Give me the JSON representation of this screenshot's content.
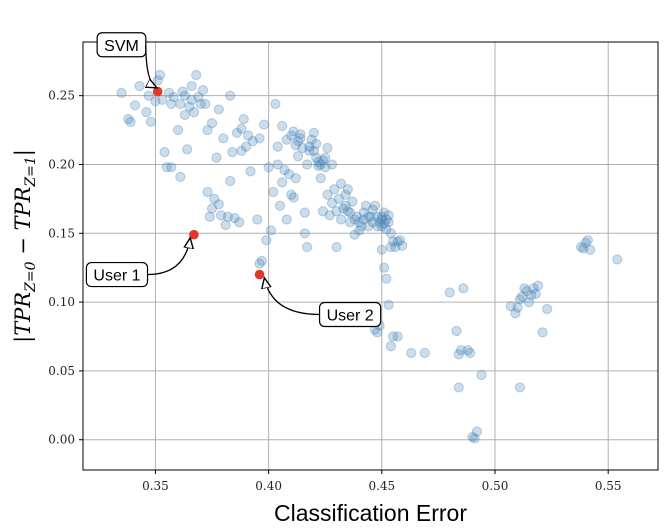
{
  "chart_data": {
    "type": "scatter",
    "title": "",
    "xlabel": "Classification Error",
    "ylabel": "|TPR_{Z=0} − TPR_{Z=1}|",
    "ylabel_parts": {
      "open": "|TPR",
      "sub1": "Z=0",
      "minus": " − TPR",
      "sub2": "Z=1",
      "close": "|"
    },
    "xlim": [
      0.318,
      0.572
    ],
    "ylim": [
      -0.022,
      0.289
    ],
    "xticks": [
      0.35,
      0.4,
      0.45,
      0.5,
      0.55
    ],
    "xtick_labels": [
      "0.35",
      "0.40",
      "0.45",
      "0.50",
      "0.55"
    ],
    "yticks": [
      0.0,
      0.05,
      0.1,
      0.15,
      0.2,
      0.25
    ],
    "ytick_labels": [
      "0.00",
      "0.05",
      "0.10",
      "0.15",
      "0.20",
      "0.25"
    ],
    "grid": true,
    "colors": {
      "points": "#4682b4",
      "highlight": "#e0392b",
      "grid": "#b0b0b0"
    },
    "points": [
      [
        0.335,
        0.252
      ],
      [
        0.338,
        0.233
      ],
      [
        0.339,
        0.231
      ],
      [
        0.341,
        0.243
      ],
      [
        0.343,
        0.257
      ],
      [
        0.346,
        0.238
      ],
      [
        0.347,
        0.25
      ],
      [
        0.348,
        0.231
      ],
      [
        0.35,
        0.246
      ],
      [
        0.351,
        0.261
      ],
      [
        0.352,
        0.265
      ],
      [
        0.353,
        0.247
      ],
      [
        0.354,
        0.209
      ],
      [
        0.355,
        0.198
      ],
      [
        0.356,
        0.252
      ],
      [
        0.357,
        0.198
      ],
      [
        0.357,
        0.244
      ],
      [
        0.358,
        0.249
      ],
      [
        0.36,
        0.225
      ],
      [
        0.361,
        0.191
      ],
      [
        0.361,
        0.244
      ],
      [
        0.362,
        0.253
      ],
      [
        0.363,
        0.236
      ],
      [
        0.363,
        0.25
      ],
      [
        0.364,
        0.211
      ],
      [
        0.365,
        0.242
      ],
      [
        0.366,
        0.247
      ],
      [
        0.366,
        0.257
      ],
      [
        0.367,
        0.238
      ],
      [
        0.368,
        0.265
      ],
      [
        0.369,
        0.249
      ],
      [
        0.37,
        0.244
      ],
      [
        0.371,
        0.254
      ],
      [
        0.372,
        0.244
      ],
      [
        0.373,
        0.18
      ],
      [
        0.373,
        0.225
      ],
      [
        0.374,
        0.162
      ],
      [
        0.375,
        0.168
      ],
      [
        0.375,
        0.23
      ],
      [
        0.376,
        0.175
      ],
      [
        0.377,
        0.205
      ],
      [
        0.378,
        0.171
      ],
      [
        0.378,
        0.24
      ],
      [
        0.379,
        0.163
      ],
      [
        0.38,
        0.219
      ],
      [
        0.381,
        0.156
      ],
      [
        0.382,
        0.162
      ],
      [
        0.383,
        0.188
      ],
      [
        0.383,
        0.25
      ],
      [
        0.384,
        0.209
      ],
      [
        0.385,
        0.161
      ],
      [
        0.386,
        0.223
      ],
      [
        0.387,
        0.158
      ],
      [
        0.388,
        0.226
      ],
      [
        0.388,
        0.21
      ],
      [
        0.389,
        0.233
      ],
      [
        0.39,
        0.213
      ],
      [
        0.391,
        0.221
      ],
      [
        0.392,
        0.195
      ],
      [
        0.393,
        0.217
      ],
      [
        0.395,
        0.16
      ],
      [
        0.396,
        0.128
      ],
      [
        0.396,
        0.219
      ],
      [
        0.397,
        0.13
      ],
      [
        0.398,
        0.229
      ],
      [
        0.399,
        0.145
      ],
      [
        0.4,
        0.198
      ],
      [
        0.401,
        0.152
      ],
      [
        0.402,
        0.18
      ],
      [
        0.403,
        0.244
      ],
      [
        0.404,
        0.2
      ],
      [
        0.404,
        0.213
      ],
      [
        0.405,
        0.17
      ],
      [
        0.406,
        0.228
      ],
      [
        0.406,
        0.187
      ],
      [
        0.407,
        0.196
      ],
      [
        0.408,
        0.16
      ],
      [
        0.408,
        0.218
      ],
      [
        0.409,
        0.193
      ],
      [
        0.41,
        0.178
      ],
      [
        0.41,
        0.221
      ],
      [
        0.411,
        0.176
      ],
      [
        0.411,
        0.224
      ],
      [
        0.412,
        0.214
      ],
      [
        0.412,
        0.19
      ],
      [
        0.413,
        0.206
      ],
      [
        0.413,
        0.217
      ],
      [
        0.414,
        0.222
      ],
      [
        0.414,
        0.219
      ],
      [
        0.415,
        0.212
      ],
      [
        0.416,
        0.15
      ],
      [
        0.416,
        0.165
      ],
      [
        0.417,
        0.14
      ],
      [
        0.417,
        0.2
      ],
      [
        0.418,
        0.21
      ],
      [
        0.418,
        0.213
      ],
      [
        0.419,
        0.218
      ],
      [
        0.42,
        0.223
      ],
      [
        0.42,
        0.21
      ],
      [
        0.421,
        0.205
      ],
      [
        0.421,
        0.215
      ],
      [
        0.422,
        0.199
      ],
      [
        0.422,
        0.202
      ],
      [
        0.423,
        0.19
      ],
      [
        0.423,
        0.2
      ],
      [
        0.424,
        0.203
      ],
      [
        0.424,
        0.166
      ],
      [
        0.425,
        0.198
      ],
      [
        0.425,
        0.205
      ],
      [
        0.426,
        0.212
      ],
      [
        0.426,
        0.178
      ],
      [
        0.427,
        0.163
      ],
      [
        0.428,
        0.172
      ],
      [
        0.428,
        0.2
      ],
      [
        0.429,
        0.182
      ],
      [
        0.43,
        0.166
      ],
      [
        0.43,
        0.14
      ],
      [
        0.431,
        0.175
      ],
      [
        0.432,
        0.186
      ],
      [
        0.432,
        0.16
      ],
      [
        0.433,
        0.168
      ],
      [
        0.434,
        0.178
      ],
      [
        0.434,
        0.17
      ],
      [
        0.435,
        0.166
      ],
      [
        0.435,
        0.182
      ],
      [
        0.436,
        0.165
      ],
      [
        0.436,
        0.158
      ],
      [
        0.437,
        0.173
      ],
      [
        0.438,
        0.16
      ],
      [
        0.438,
        0.149
      ],
      [
        0.439,
        0.162
      ],
      [
        0.44,
        0.158
      ],
      [
        0.44,
        0.152
      ],
      [
        0.441,
        0.155
      ],
      [
        0.442,
        0.16
      ],
      [
        0.442,
        0.165
      ],
      [
        0.443,
        0.17
      ],
      [
        0.444,
        0.162
      ],
      [
        0.444,
        0.155
      ],
      [
        0.445,
        0.162
      ],
      [
        0.446,
        0.158
      ],
      [
        0.446,
        0.167
      ],
      [
        0.447,
        0.17
      ],
      [
        0.448,
        0.162
      ],
      [
        0.448,
        0.155
      ],
      [
        0.449,
        0.158
      ],
      [
        0.45,
        0.16
      ],
      [
        0.45,
        0.162
      ],
      [
        0.45,
        0.155
      ],
      [
        0.451,
        0.157
      ],
      [
        0.451,
        0.165
      ],
      [
        0.452,
        0.16
      ],
      [
        0.452,
        0.153
      ],
      [
        0.453,
        0.158
      ],
      [
        0.453,
        0.163
      ],
      [
        0.454,
        0.15
      ],
      [
        0.454,
        0.14
      ],
      [
        0.455,
        0.144
      ],
      [
        0.456,
        0.14
      ],
      [
        0.457,
        0.144
      ],
      [
        0.458,
        0.145
      ],
      [
        0.459,
        0.141
      ],
      [
        0.447,
        0.08
      ],
      [
        0.448,
        0.078
      ],
      [
        0.449,
        0.083
      ],
      [
        0.45,
        0.138
      ],
      [
        0.451,
        0.125
      ],
      [
        0.452,
        0.117
      ],
      [
        0.453,
        0.098
      ],
      [
        0.454,
        0.068
      ],
      [
        0.455,
        0.075
      ],
      [
        0.457,
        0.075
      ],
      [
        0.463,
        0.063
      ],
      [
        0.469,
        0.063
      ],
      [
        0.48,
        0.107
      ],
      [
        0.483,
        0.079
      ],
      [
        0.484,
        0.062
      ],
      [
        0.485,
        0.065
      ],
      [
        0.486,
        0.11
      ],
      [
        0.488,
        0.065
      ],
      [
        0.489,
        0.063
      ],
      [
        0.484,
        0.038
      ],
      [
        0.49,
        0.002
      ],
      [
        0.491,
        0.001
      ],
      [
        0.492,
        0.006
      ],
      [
        0.494,
        0.047
      ],
      [
        0.507,
        0.097
      ],
      [
        0.509,
        0.092
      ],
      [
        0.51,
        0.096
      ],
      [
        0.511,
        0.102
      ],
      [
        0.512,
        0.104
      ],
      [
        0.513,
        0.11
      ],
      [
        0.514,
        0.108
      ],
      [
        0.515,
        0.1
      ],
      [
        0.516,
        0.105
      ],
      [
        0.517,
        0.11
      ],
      [
        0.518,
        0.106
      ],
      [
        0.519,
        0.112
      ],
      [
        0.511,
        0.038
      ],
      [
        0.521,
        0.078
      ],
      [
        0.523,
        0.095
      ],
      [
        0.538,
        0.14
      ],
      [
        0.539,
        0.139
      ],
      [
        0.54,
        0.143
      ],
      [
        0.541,
        0.145
      ],
      [
        0.542,
        0.138
      ],
      [
        0.554,
        0.131
      ]
    ],
    "highlighted": [
      {
        "name": "SVM",
        "x": 0.351,
        "y": 0.253
      },
      {
        "name": "User 1",
        "x": 0.367,
        "y": 0.149
      },
      {
        "name": "User 2",
        "x": 0.396,
        "y": 0.12
      }
    ],
    "annotations": [
      {
        "text": "SVM",
        "target_x": 0.351,
        "target_y": 0.253,
        "text_x": 0.335,
        "text_y": 0.287
      },
      {
        "text": "User 1",
        "target_x": 0.367,
        "target_y": 0.149,
        "text_x": 0.333,
        "text_y": 0.12
      },
      {
        "text": "User 2",
        "target_x": 0.396,
        "target_y": 0.12,
        "text_x": 0.436,
        "text_y": 0.091
      }
    ]
  }
}
